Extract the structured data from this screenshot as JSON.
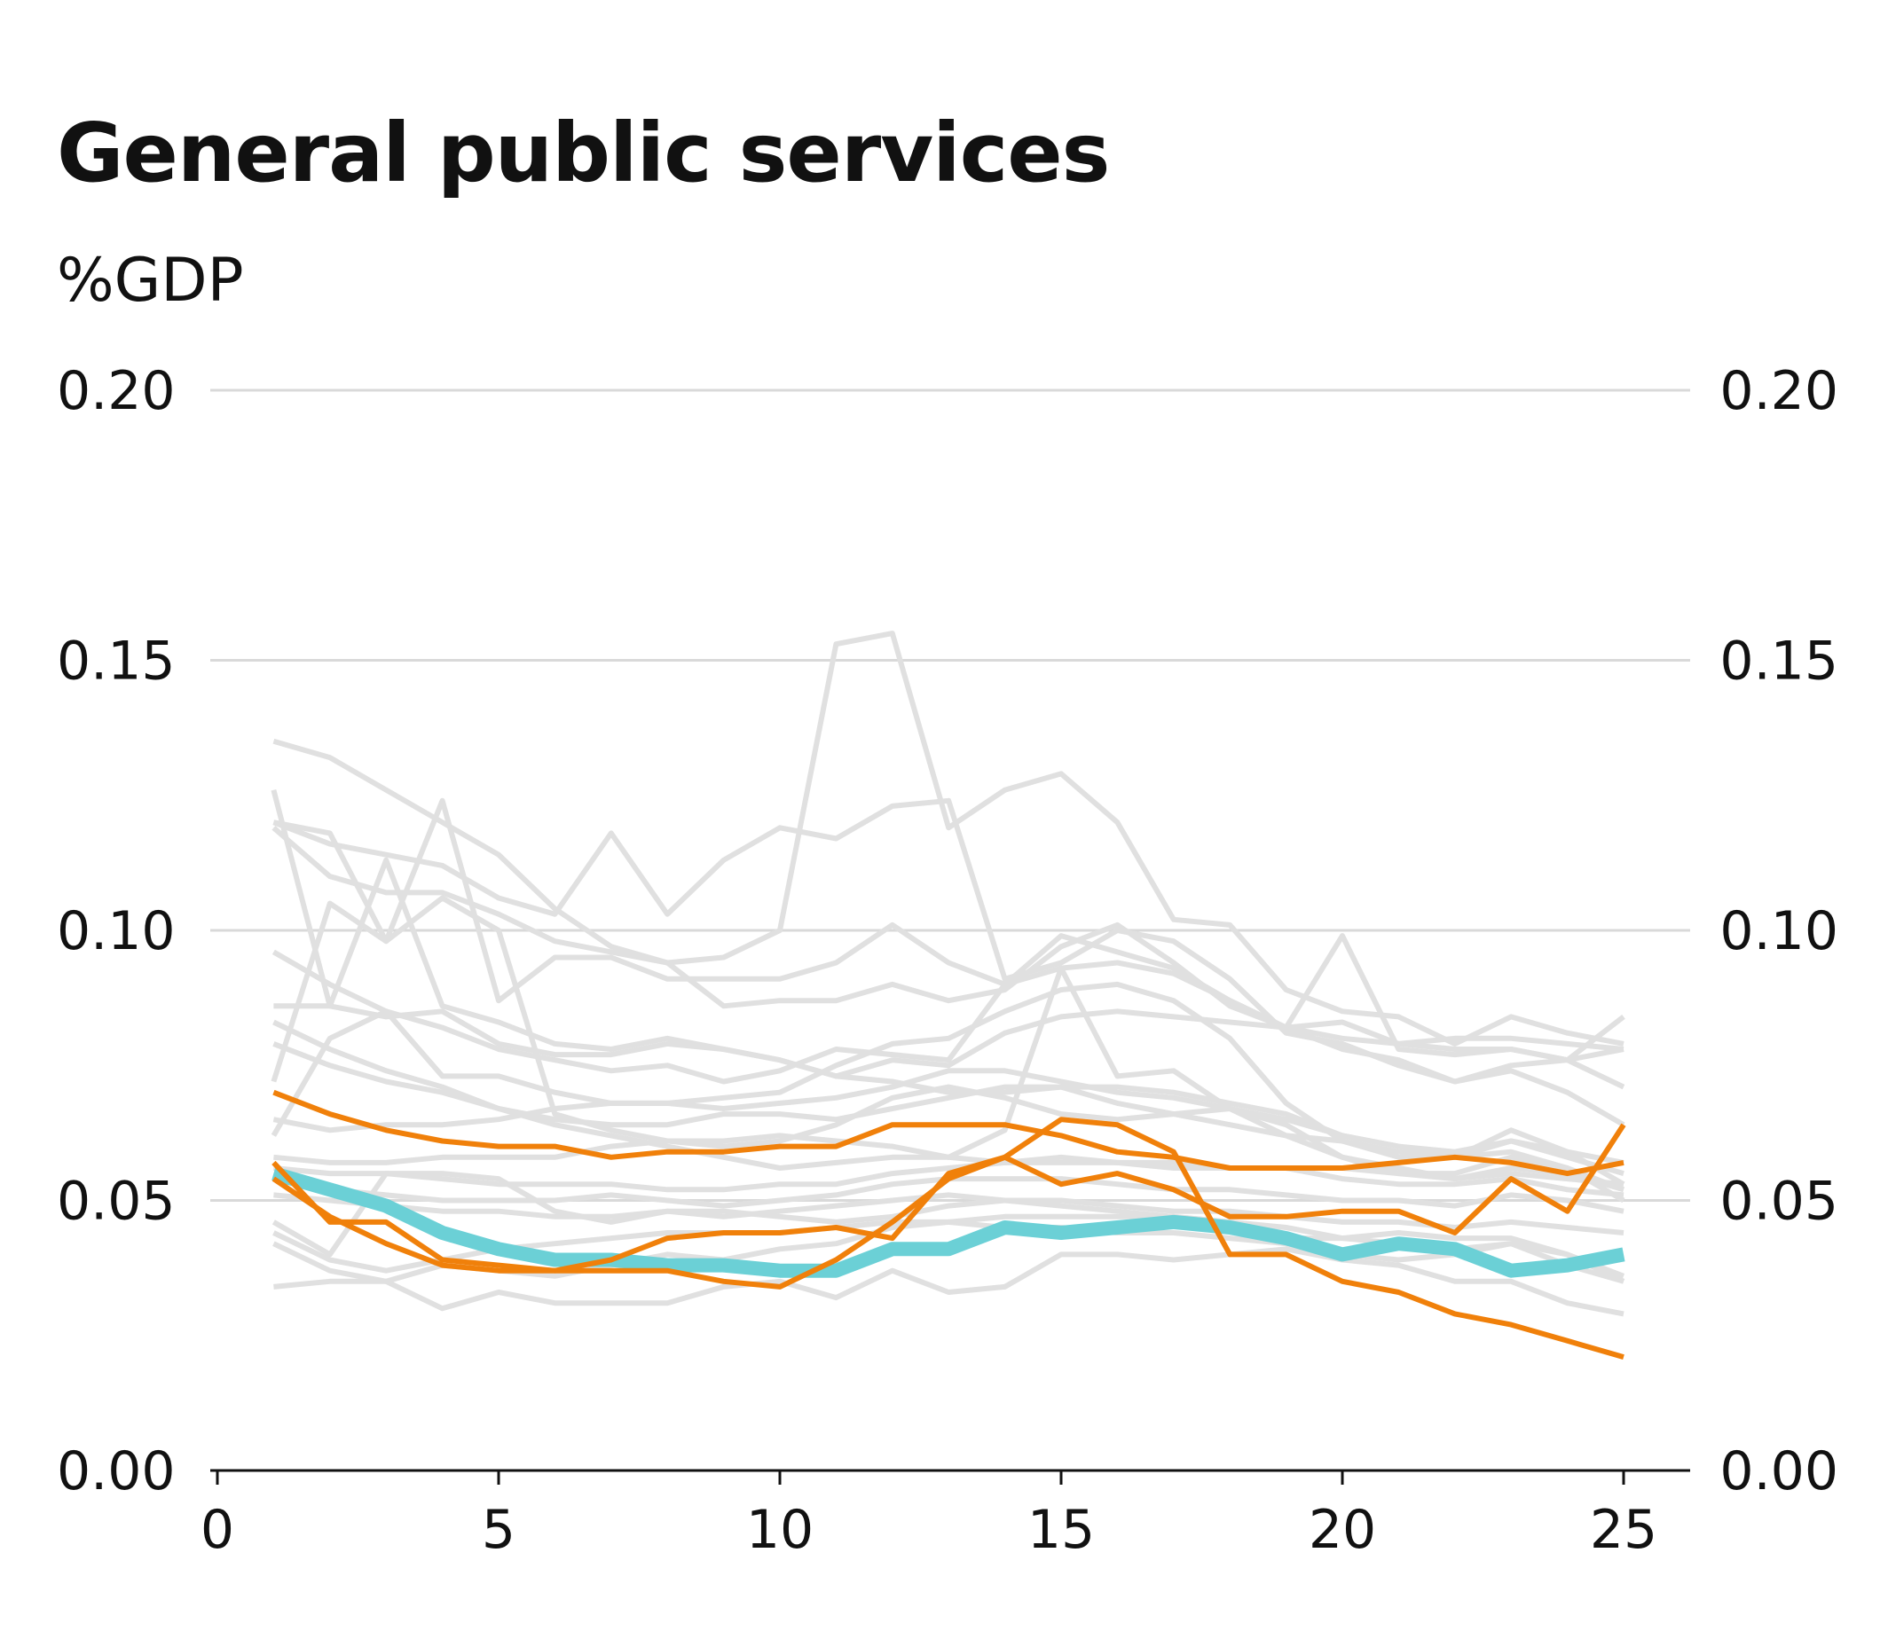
{
  "chart_data": {
    "type": "line",
    "title": "General public services",
    "subtitle": "%GDP",
    "xlabel": "",
    "ylabel": "",
    "xlim": [
      0,
      25
    ],
    "ylim": [
      0,
      0.2
    ],
    "x_ticks": [
      0,
      5,
      10,
      15,
      20,
      25
    ],
    "y_ticks": [
      "0.00",
      "0.05",
      "0.10",
      "0.15",
      "0.20"
    ],
    "grid": true,
    "legend": "none",
    "colors": {
      "background": "#e0e0e0",
      "highlight": "#f0800a",
      "focus": "#6bd0d6",
      "grid": "#d9d9d9",
      "axis": "#111111"
    },
    "x": [
      1,
      2,
      3,
      4,
      5,
      6,
      7,
      8,
      9,
      10,
      11,
      12,
      13,
      14,
      15,
      16,
      17,
      18,
      19,
      20,
      21,
      22,
      23,
      24,
      25
    ],
    "series": [
      {
        "role": "background",
        "values": [
          0.135,
          0.132,
          0.126,
          0.12,
          0.114,
          0.104,
          0.097,
          0.094,
          0.095,
          0.1,
          0.153,
          0.155,
          0.119,
          0.126,
          0.129,
          0.12,
          0.102,
          0.101,
          0.089,
          0.085,
          0.084,
          0.079,
          0.084,
          0.081,
          0.079
        ]
      },
      {
        "role": "background",
        "values": [
          0.126,
          0.086,
          0.113,
          0.086,
          0.083,
          0.079,
          0.078,
          0.08,
          0.078,
          0.076,
          0.073,
          0.076,
          0.075,
          0.081,
          0.084,
          0.085,
          0.084,
          0.083,
          0.082,
          0.08,
          0.079,
          0.078,
          0.078,
          0.076,
          0.084
        ]
      },
      {
        "role": "background",
        "values": [
          0.12,
          0.118,
          0.098,
          0.124,
          0.087,
          0.095,
          0.095,
          0.091,
          0.091,
          0.091,
          0.094,
          0.101,
          0.094,
          0.09,
          0.093,
          0.094,
          0.092,
          0.087,
          0.082,
          0.083,
          0.079,
          0.08,
          0.08,
          0.079,
          0.078
        ]
      },
      {
        "role": "background",
        "values": [
          0.12,
          0.116,
          0.114,
          0.112,
          0.106,
          0.103,
          0.118,
          0.103,
          0.113,
          0.119,
          0.117,
          0.123,
          0.124,
          0.091,
          0.094,
          0.1,
          0.098,
          0.091,
          0.081,
          0.079,
          0.075,
          0.072,
          0.075,
          0.076,
          0.078
        ]
      },
      {
        "role": "background",
        "values": [
          0.119,
          0.11,
          0.107,
          0.107,
          0.103,
          0.098,
          0.096,
          0.094,
          0.086,
          0.087,
          0.087,
          0.09,
          0.087,
          0.089,
          0.097,
          0.101,
          0.094,
          0.086,
          0.082,
          0.078,
          0.076,
          0.072,
          0.074,
          0.07,
          0.064
        ]
      },
      {
        "role": "background",
        "values": [
          0.096,
          0.09,
          0.085,
          0.082,
          0.078,
          0.076,
          0.074,
          0.075,
          0.072,
          0.074,
          0.078,
          0.077,
          0.076,
          0.09,
          0.099,
          0.096,
          0.093,
          0.087,
          0.082,
          0.099,
          0.078,
          0.077,
          0.078,
          0.076,
          0.071
        ]
      },
      {
        "role": "background",
        "values": [
          0.086,
          0.086,
          0.084,
          0.085,
          0.079,
          0.077,
          0.077,
          0.079,
          0.078,
          0.076,
          0.073,
          0.072,
          0.07,
          0.07,
          0.071,
          0.068,
          0.066,
          0.064,
          0.062,
          0.061,
          0.059,
          0.058,
          0.061,
          0.058,
          0.055
        ]
      },
      {
        "role": "background",
        "values": [
          0.083,
          0.078,
          0.074,
          0.071,
          0.067,
          0.065,
          0.064,
          0.064,
          0.066,
          0.066,
          0.065,
          0.067,
          0.069,
          0.071,
          0.071,
          0.071,
          0.07,
          0.068,
          0.066,
          0.062,
          0.06,
          0.059,
          0.061,
          0.059,
          0.057
        ]
      },
      {
        "role": "background",
        "values": [
          0.079,
          0.075,
          0.072,
          0.07,
          0.067,
          0.064,
          0.062,
          0.06,
          0.058,
          0.056,
          0.057,
          0.058,
          0.058,
          0.063,
          0.093,
          0.073,
          0.074,
          0.067,
          0.064,
          0.058,
          0.056,
          0.054,
          0.056,
          0.055,
          0.052
        ]
      },
      {
        "role": "background",
        "values": [
          0.072,
          0.105,
          0.098,
          0.106,
          0.1,
          0.066,
          0.063,
          0.061,
          0.06,
          0.061,
          0.064,
          0.069,
          0.071,
          0.069,
          0.066,
          0.065,
          0.066,
          0.067,
          0.062,
          0.058,
          0.055,
          0.055,
          0.058,
          0.056,
          0.05
        ]
      },
      {
        "role": "background",
        "values": [
          0.065,
          0.063,
          0.064,
          0.064,
          0.065,
          0.067,
          0.068,
          0.068,
          0.067,
          0.068,
          0.069,
          0.071,
          0.074,
          0.074,
          0.072,
          0.07,
          0.069,
          0.067,
          0.065,
          0.062,
          0.06,
          0.058,
          0.059,
          0.056,
          0.052
        ]
      },
      {
        "role": "background",
        "values": [
          0.062,
          0.08,
          0.085,
          0.073,
          0.073,
          0.07,
          0.068,
          0.068,
          0.069,
          0.07,
          0.075,
          0.079,
          0.08,
          0.085,
          0.089,
          0.09,
          0.087,
          0.08,
          0.068,
          0.061,
          0.058,
          0.058,
          0.063,
          0.059,
          0.053
        ]
      },
      {
        "role": "background",
        "values": [
          0.058,
          0.057,
          0.057,
          0.058,
          0.058,
          0.058,
          0.06,
          0.061,
          0.061,
          0.062,
          0.061,
          0.06,
          0.058,
          0.057,
          0.058,
          0.057,
          0.056,
          0.056,
          0.056,
          0.056,
          0.055,
          0.054,
          0.055,
          0.054,
          0.053
        ]
      },
      {
        "role": "background",
        "values": [
          0.056,
          0.055,
          0.055,
          0.054,
          0.053,
          0.053,
          0.053,
          0.052,
          0.052,
          0.053,
          0.053,
          0.055,
          0.056,
          0.057,
          0.057,
          0.057,
          0.057,
          0.056,
          0.056,
          0.054,
          0.053,
          0.053,
          0.054,
          0.052,
          0.051
        ]
      },
      {
        "role": "background",
        "values": [
          0.054,
          0.052,
          0.051,
          0.05,
          0.05,
          0.05,
          0.051,
          0.05,
          0.049,
          0.05,
          0.051,
          0.053,
          0.054,
          0.054,
          0.054,
          0.053,
          0.052,
          0.052,
          0.051,
          0.05,
          0.05,
          0.049,
          0.051,
          0.05,
          0.048
        ]
      },
      {
        "role": "background",
        "values": [
          0.051,
          0.05,
          0.049,
          0.048,
          0.048,
          0.047,
          0.047,
          0.048,
          0.048,
          0.047,
          0.046,
          0.047,
          0.049,
          0.05,
          0.05,
          0.049,
          0.048,
          0.048,
          0.047,
          0.046,
          0.046,
          0.045,
          0.046,
          0.045,
          0.044
        ]
      },
      {
        "role": "background",
        "values": [
          0.046,
          0.04,
          0.055,
          0.055,
          0.054,
          0.048,
          0.046,
          0.048,
          0.047,
          0.048,
          0.049,
          0.05,
          0.051,
          0.05,
          0.049,
          0.048,
          0.047,
          0.046,
          0.043,
          0.043,
          0.044,
          0.043,
          0.043,
          0.04,
          0.035
        ]
      },
      {
        "role": "background",
        "values": [
          0.044,
          0.039,
          0.037,
          0.039,
          0.041,
          0.042,
          0.043,
          0.044,
          0.044,
          0.044,
          0.045,
          0.046,
          0.046,
          0.047,
          0.047,
          0.047,
          0.047,
          0.046,
          0.045,
          0.043,
          0.042,
          0.041,
          0.042,
          0.04,
          0.036
        ]
      },
      {
        "role": "background",
        "values": [
          0.042,
          0.037,
          0.035,
          0.038,
          0.037,
          0.036,
          0.038,
          0.04,
          0.039,
          0.041,
          0.042,
          0.045,
          0.046,
          0.045,
          0.045,
          0.044,
          0.044,
          0.043,
          0.042,
          0.04,
          0.039,
          0.04,
          0.042,
          0.038,
          0.035
        ]
      },
      {
        "role": "background",
        "values": [
          0.034,
          0.035,
          0.035,
          0.03,
          0.033,
          0.031,
          0.031,
          0.031,
          0.034,
          0.035,
          0.032,
          0.037,
          0.033,
          0.034,
          0.04,
          0.04,
          0.039,
          0.04,
          0.041,
          0.039,
          0.038,
          0.035,
          0.035,
          0.031,
          0.029
        ]
      },
      {
        "role": "focus",
        "values": [
          0.055,
          0.052,
          0.049,
          0.044,
          0.041,
          0.039,
          0.039,
          0.038,
          0.038,
          0.037,
          0.037,
          0.041,
          0.041,
          0.045,
          0.044,
          0.045,
          0.046,
          0.045,
          0.043,
          0.04,
          0.042,
          0.041,
          0.037,
          0.038,
          0.04
        ]
      },
      {
        "role": "highlight",
        "values": [
          0.07,
          0.066,
          0.063,
          0.061,
          0.06,
          0.06,
          0.058,
          0.059,
          0.059,
          0.06,
          0.06,
          0.064,
          0.064,
          0.064,
          0.062,
          0.059,
          0.058,
          0.056,
          0.056,
          0.056,
          0.057,
          0.058,
          0.057,
          0.055,
          0.057
        ]
      },
      {
        "role": "highlight",
        "values": [
          0.057,
          0.046,
          0.046,
          0.039,
          0.038,
          0.037,
          0.037,
          0.037,
          0.035,
          0.034,
          0.039,
          0.046,
          0.054,
          0.058,
          0.065,
          0.064,
          0.059,
          0.04,
          0.04,
          0.035,
          0.033,
          0.029,
          0.027,
          0.024,
          0.021
        ]
      },
      {
        "role": "highlight",
        "values": [
          0.054,
          0.047,
          0.042,
          0.038,
          0.037,
          0.037,
          0.039,
          0.043,
          0.044,
          0.044,
          0.045,
          0.043,
          0.055,
          0.058,
          0.053,
          0.055,
          0.052,
          0.047,
          0.047,
          0.048,
          0.048,
          0.044,
          0.054,
          0.048,
          0.064
        ]
      }
    ]
  }
}
